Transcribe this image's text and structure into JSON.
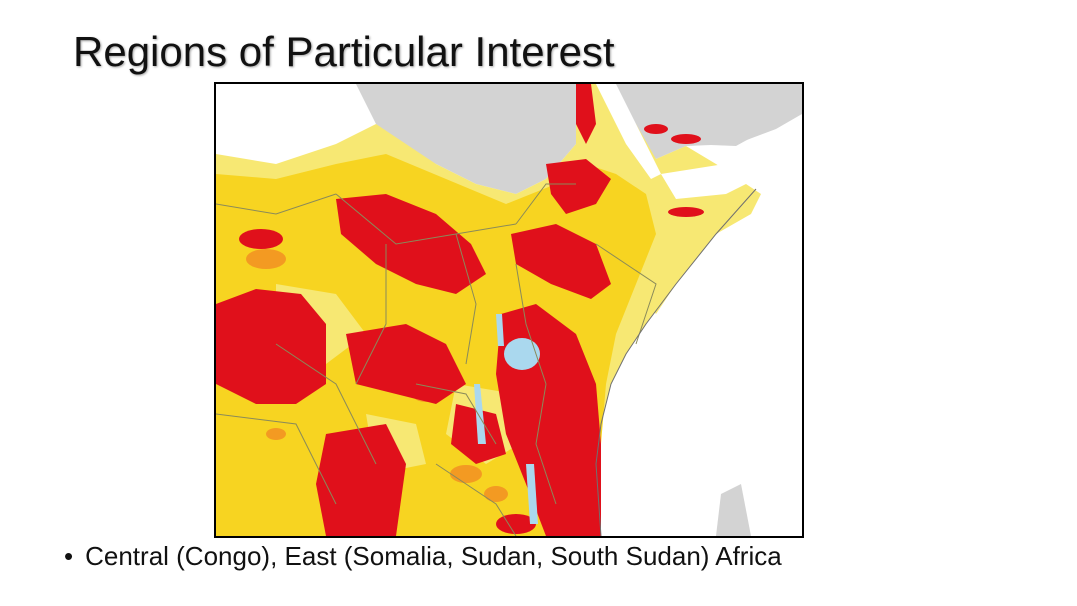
{
  "slide": {
    "title": "Regions of Particular Interest",
    "bullets": [
      {
        "symbol": "•",
        "text": "Central (Congo), East (Somalia, Sudan, South Sudan) Africa"
      }
    ]
  },
  "map": {
    "region": "Central and East Africa",
    "colors": {
      "severe": "#e0101b",
      "high": "#f39a22",
      "moderate": "#f7d421",
      "low": "#f7e873",
      "no_data_land": "#d5d5d5",
      "water": "#aad8ee",
      "border": "#8a8a5a"
    }
  }
}
